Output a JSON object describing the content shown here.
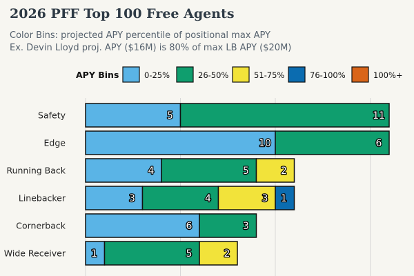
{
  "chart_data": {
    "type": "bar",
    "orientation": "horizontal",
    "stacked": true,
    "title": "2026 PFF Top 100 Free Agents",
    "subtitle_lines": [
      "Color Bins: projected APY percentile of positional max APY",
      "Ex. Devin Lloyd proj. APY ($16M) is 80% of max LB APY ($20M)"
    ],
    "legend_title": "APY Bins",
    "legend_position": "top",
    "categories": [
      "Safety",
      "Edge",
      "Running Back",
      "Linebacker",
      "Cornerback",
      "Wide Receiver"
    ],
    "series": [
      {
        "name": "0-25%",
        "color": "#5ab4e6",
        "values": [
          5,
          10,
          4,
          3,
          6,
          1
        ]
      },
      {
        "name": "26-50%",
        "color": "#0f9e6e",
        "values": [
          11,
          6,
          5,
          4,
          3,
          5
        ]
      },
      {
        "name": "51-75%",
        "color": "#f2e33a",
        "values": [
          0,
          0,
          2,
          3,
          0,
          2
        ]
      },
      {
        "name": "76-100%",
        "color": "#0b6cb0",
        "values": [
          0,
          0,
          0,
          1,
          0,
          0
        ]
      },
      {
        "name": "100%+",
        "color": "#d9651a",
        "values": [
          0,
          0,
          0,
          0,
          0,
          0
        ]
      }
    ],
    "xlim": [
      0,
      17
    ],
    "grid": true
  }
}
